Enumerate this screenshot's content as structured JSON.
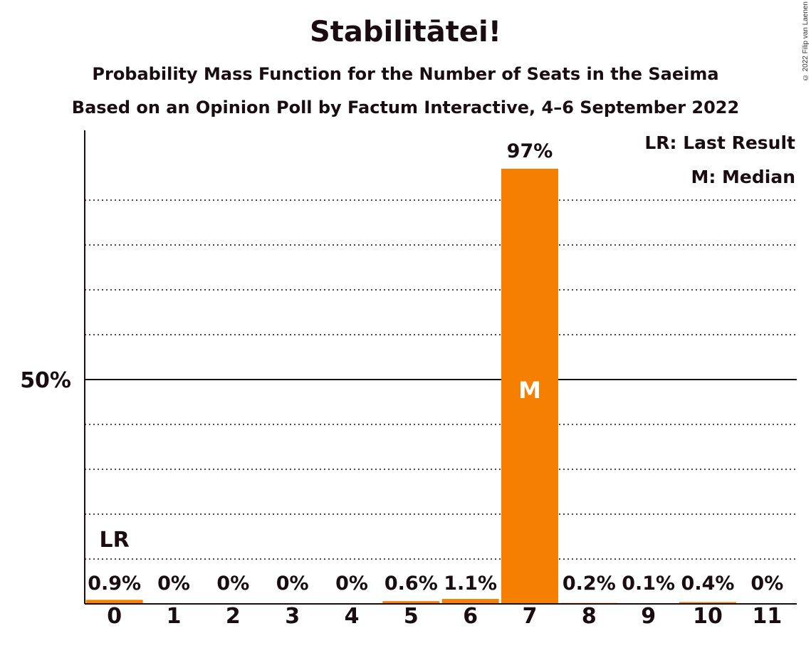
{
  "chart_data": {
    "type": "bar",
    "title": "Stabilitātei!",
    "subtitle": "Probability Mass Function for the Number of Seats in the Saeima",
    "subtitle2": "Based on an Opinion Poll by Factum Interactive, 4–6 September 2022",
    "categories": [
      "0",
      "1",
      "2",
      "3",
      "4",
      "5",
      "6",
      "7",
      "8",
      "9",
      "10",
      "11"
    ],
    "values": [
      0.9,
      0,
      0,
      0,
      0,
      0.6,
      1.1,
      97,
      0.2,
      0.1,
      0.4,
      0
    ],
    "value_labels": [
      "0.9%",
      "0%",
      "0%",
      "0%",
      "0%",
      "0.6%",
      "1.1%",
      "97%",
      "0.2%",
      "0.1%",
      "0.4%",
      "0%"
    ],
    "ylim": [
      0,
      100
    ],
    "y_tick_labels": [
      {
        "value": 50,
        "label": "50%"
      }
    ],
    "gridlines": [
      10,
      20,
      30,
      40,
      60,
      70,
      80,
      90
    ],
    "bar_color": "#f57f00",
    "last_result_index": 0,
    "last_result_mark": "LR",
    "median_index": 7,
    "median_mark": "M",
    "legend": [
      "LR: Last Result",
      "M: Median"
    ],
    "legend_position": "top-right"
  },
  "copyright": "© 2022 Filip van Laenen"
}
